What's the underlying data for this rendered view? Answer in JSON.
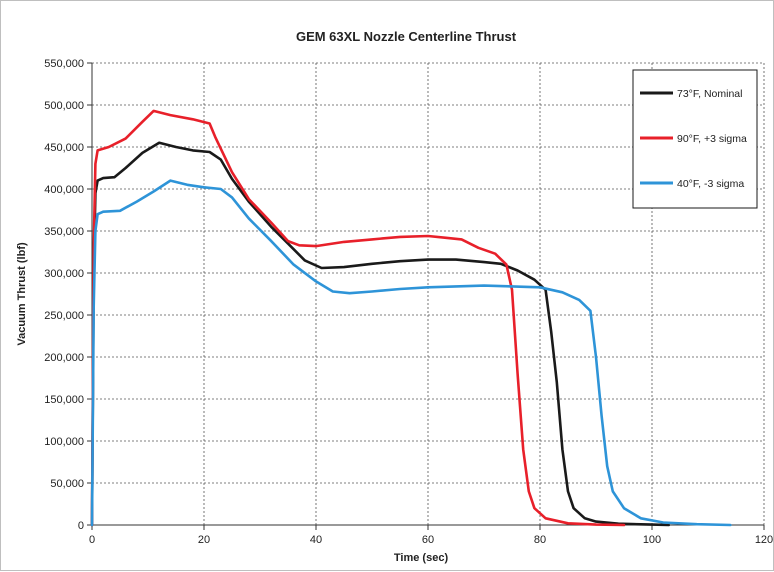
{
  "chart_data": {
    "type": "line",
    "title": "GEM 63XL Nozzle Centerline Thrust",
    "xlabel": "Time (sec)",
    "ylabel": "Vacuum Thrust (lbf)",
    "xlim": [
      0,
      120
    ],
    "ylim": [
      0,
      550000
    ],
    "x_ticks": [
      "0",
      "20",
      "40",
      "60",
      "80",
      "100",
      "120"
    ],
    "y_ticks": [
      "0",
      "50,000",
      "100,000",
      "150,000",
      "200,000",
      "250,000",
      "300,000",
      "350,000",
      "400,000",
      "450,000",
      "500,000",
      "550,000"
    ],
    "grid": true,
    "legend_position": "top-right",
    "series": [
      {
        "name": "73°F, Nominal",
        "color": "#1a1a1a",
        "points": [
          [
            0,
            0
          ],
          [
            0.3,
            300000
          ],
          [
            0.6,
            395000
          ],
          [
            1,
            410000
          ],
          [
            2,
            413000
          ],
          [
            4,
            414000
          ],
          [
            6,
            425000
          ],
          [
            9,
            443000
          ],
          [
            12,
            455000
          ],
          [
            15,
            450000
          ],
          [
            18,
            446000
          ],
          [
            21,
            444000
          ],
          [
            23,
            435000
          ],
          [
            25,
            412000
          ],
          [
            28,
            385000
          ],
          [
            32,
            355000
          ],
          [
            35,
            335000
          ],
          [
            38,
            315000
          ],
          [
            41,
            306000
          ],
          [
            45,
            307000
          ],
          [
            50,
            311000
          ],
          [
            55,
            314000
          ],
          [
            60,
            316000
          ],
          [
            65,
            316000
          ],
          [
            70,
            313000
          ],
          [
            73,
            311000
          ],
          [
            76,
            303000
          ],
          [
            79,
            292000
          ],
          [
            81,
            280000
          ],
          [
            82,
            230000
          ],
          [
            83,
            170000
          ],
          [
            84,
            90000
          ],
          [
            85,
            40000
          ],
          [
            86,
            20000
          ],
          [
            88,
            8000
          ],
          [
            90,
            4000
          ],
          [
            94,
            1500
          ],
          [
            100,
            500
          ],
          [
            103,
            0
          ]
        ]
      },
      {
        "name": "90°F, +3 sigma",
        "color": "#e8202a",
        "points": [
          [
            0,
            0
          ],
          [
            0.3,
            330000
          ],
          [
            0.6,
            430000
          ],
          [
            1,
            446000
          ],
          [
            3,
            450000
          ],
          [
            6,
            460000
          ],
          [
            9,
            480000
          ],
          [
            11,
            493000
          ],
          [
            14,
            488000
          ],
          [
            18,
            483000
          ],
          [
            21,
            478000
          ],
          [
            22,
            462000
          ],
          [
            25,
            420000
          ],
          [
            28,
            388000
          ],
          [
            32,
            360000
          ],
          [
            35,
            338000
          ],
          [
            37,
            333000
          ],
          [
            40,
            332000
          ],
          [
            45,
            337000
          ],
          [
            50,
            340000
          ],
          [
            55,
            343000
          ],
          [
            60,
            344000
          ],
          [
            63,
            342000
          ],
          [
            66,
            340000
          ],
          [
            69,
            330000
          ],
          [
            72,
            323000
          ],
          [
            74,
            310000
          ],
          [
            75,
            280000
          ],
          [
            76,
            180000
          ],
          [
            77,
            90000
          ],
          [
            78,
            40000
          ],
          [
            79,
            20000
          ],
          [
            81,
            8000
          ],
          [
            85,
            2000
          ],
          [
            90,
            500
          ],
          [
            95,
            0
          ]
        ]
      },
      {
        "name": "40°F, -3 sigma",
        "color": "#2e94d8",
        "points": [
          [
            0,
            0
          ],
          [
            0.3,
            260000
          ],
          [
            0.6,
            350000
          ],
          [
            1,
            370000
          ],
          [
            2,
            373000
          ],
          [
            5,
            374000
          ],
          [
            8,
            385000
          ],
          [
            11,
            397000
          ],
          [
            14,
            410000
          ],
          [
            17,
            405000
          ],
          [
            20,
            402000
          ],
          [
            23,
            400000
          ],
          [
            25,
            390000
          ],
          [
            28,
            365000
          ],
          [
            32,
            338000
          ],
          [
            36,
            310000
          ],
          [
            40,
            290000
          ],
          [
            43,
            278000
          ],
          [
            46,
            276000
          ],
          [
            50,
            278000
          ],
          [
            55,
            281000
          ],
          [
            60,
            283000
          ],
          [
            65,
            284000
          ],
          [
            70,
            285000
          ],
          [
            75,
            284000
          ],
          [
            80,
            283000
          ],
          [
            84,
            277000
          ],
          [
            87,
            268000
          ],
          [
            89,
            255000
          ],
          [
            90,
            200000
          ],
          [
            91,
            130000
          ],
          [
            92,
            70000
          ],
          [
            93,
            40000
          ],
          [
            95,
            20000
          ],
          [
            98,
            8000
          ],
          [
            102,
            3000
          ],
          [
            108,
            1000
          ],
          [
            114,
            0
          ]
        ]
      }
    ]
  }
}
